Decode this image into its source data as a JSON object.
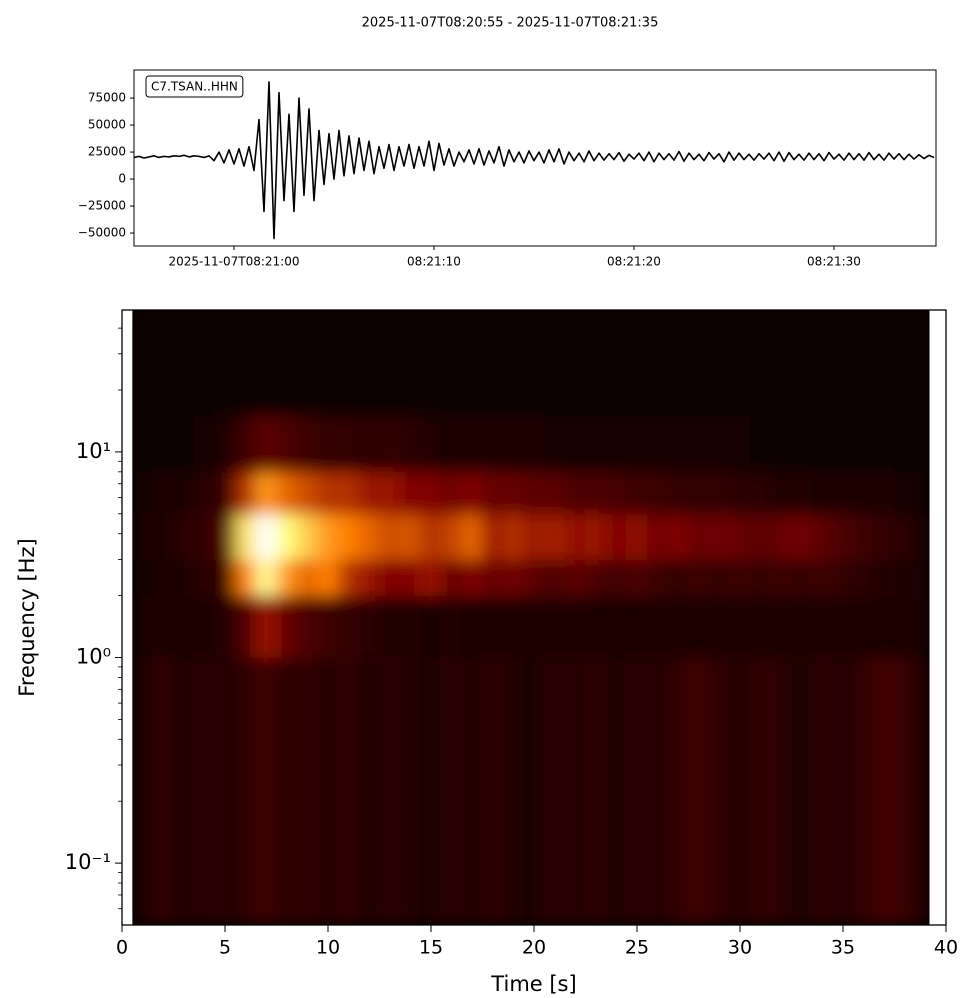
{
  "chart_data": [
    {
      "type": "line",
      "title": "2025-11-07T08:20:55  -  2025-11-07T08:21:35",
      "x": [
        0,
        0.25,
        0.5,
        0.75,
        1,
        1.25,
        1.5,
        1.75,
        2,
        2.25,
        2.5,
        2.75,
        3,
        3.25,
        3.5,
        3.75,
        4,
        4.25,
        4.5,
        4.75,
        5,
        5.25,
        5.5,
        5.75,
        6,
        6.25,
        6.5,
        6.75,
        7,
        7.25,
        7.5,
        7.75,
        8,
        8.25,
        8.5,
        8.75,
        9,
        9.25,
        9.5,
        9.75,
        10,
        10.25,
        10.5,
        10.75,
        11,
        11.25,
        11.5,
        11.75,
        12,
        12.25,
        12.5,
        12.75,
        13,
        13.25,
        13.5,
        13.75,
        14,
        14.25,
        14.5,
        14.75,
        15,
        15.25,
        15.5,
        15.75,
        16,
        16.25,
        16.5,
        16.75,
        17,
        17.25,
        17.5,
        17.75,
        18,
        18.25,
        18.5,
        18.75,
        19,
        19.25,
        19.5,
        19.75,
        20,
        20.25,
        20.5,
        20.75,
        21,
        21.25,
        21.5,
        21.75,
        22,
        22.25,
        22.5,
        22.75,
        23,
        23.25,
        23.5,
        23.75,
        24,
        24.25,
        24.5,
        24.75,
        25,
        25.25,
        25.5,
        25.75,
        26,
        26.25,
        26.5,
        26.75,
        27,
        27.25,
        27.5,
        27.75,
        28,
        28.25,
        28.5,
        28.75,
        29,
        29.25,
        29.5,
        29.75,
        30,
        30.25,
        30.5,
        30.75,
        31,
        31.25,
        31.5,
        31.75,
        32,
        32.25,
        32.5,
        32.75,
        33,
        33.25,
        33.5,
        33.75,
        34,
        34.25,
        34.5,
        34.75,
        35,
        35.25,
        35.5,
        35.75,
        36,
        36.25,
        36.5,
        36.75,
        37,
        37.25,
        37.5,
        37.75,
        38,
        38.25,
        38.5,
        38.75,
        39,
        39.25,
        39.5,
        39.75,
        40
      ],
      "series": [
        {
          "name": "C7.TSAN..HHN",
          "color": "#000000",
          "values": [
            20000,
            21000,
            19500,
            20500,
            21500,
            20000,
            21000,
            20500,
            21500,
            21000,
            22000,
            20500,
            21500,
            21000,
            20000,
            21500,
            17000,
            25000,
            15000,
            27000,
            14000,
            28000,
            12000,
            30000,
            8000,
            55000,
            -30000,
            90000,
            -55000,
            80000,
            -20000,
            60000,
            -30000,
            75000,
            -15000,
            65000,
            -20000,
            45000,
            -5000,
            42000,
            0,
            45000,
            3000,
            40000,
            5000,
            38000,
            8000,
            35000,
            5000,
            30000,
            10000,
            32000,
            8000,
            30000,
            12000,
            32000,
            10000,
            30000,
            12000,
            35000,
            8000,
            33000,
            13000,
            28000,
            12000,
            25000,
            16000,
            27000,
            14000,
            28000,
            13000,
            26000,
            15000,
            30000,
            12000,
            27000,
            16000,
            25000,
            15000,
            26000,
            17000,
            25000,
            15000,
            27000,
            16000,
            28000,
            14000,
            25000,
            17000,
            24000,
            16000,
            26000,
            17000,
            24000,
            17500,
            23500,
            18000,
            24500,
            16500,
            23000,
            18500,
            24000,
            17000,
            25000,
            16000,
            24000,
            18000,
            23500,
            17500,
            25500,
            16500,
            24000,
            18000,
            23000,
            17000,
            24500,
            18500,
            23500,
            16000,
            25000,
            17500,
            24000,
            18000,
            23000,
            17500,
            23500,
            18500,
            24000,
            17000,
            25000,
            16500,
            24500,
            18000,
            23000,
            17500,
            24000,
            18000,
            23500,
            17000,
            24500,
            18500,
            23000,
            17500,
            24000,
            18000,
            23500,
            17500,
            24500,
            18000,
            23000,
            17500,
            24000,
            18500,
            23500,
            18000,
            23000,
            18500,
            22500,
            19000,
            22000,
            20000
          ]
        }
      ],
      "xlim": [
        0,
        40.1
      ],
      "xticks": [
        {
          "value": 5,
          "label": "2025-11-07T08:21:00"
        },
        {
          "value": 15,
          "label": "08:21:10"
        },
        {
          "value": 25,
          "label": "08:21:20"
        },
        {
          "value": 35,
          "label": "08:21:30"
        }
      ],
      "ylim": [
        -62000,
        101000
      ],
      "yticks": [
        {
          "value": -50000,
          "label": "−50000"
        },
        {
          "value": -25000,
          "label": "−25000"
        },
        0,
        25000,
        50000,
        75000
      ]
    },
    {
      "type": "heatmap",
      "xlabel": "Time [s]",
      "ylabel": "Frequency [Hz]",
      "colormap": "afmhot",
      "yscale": "log",
      "x_edges": [
        0.5,
        1.5,
        2.5,
        3.5,
        4.5,
        5.5,
        6.5,
        7.5,
        8.5,
        9.5,
        10.5,
        11.5,
        12.5,
        13.5,
        14.5,
        15.5,
        16.5,
        17.5,
        18.5,
        19.5,
        20.5,
        21.5,
        22.5,
        23.5,
        24.5,
        25.5,
        26.5,
        27.5,
        28.5,
        29.5,
        30.5,
        31.5,
        32.5,
        33.5,
        34.5,
        35.5,
        36.5,
        37.5,
        38.5,
        39.2
      ],
      "y_edges": [
        0.05,
        0.1,
        0.2,
        0.5,
        1,
        2,
        3,
        5,
        8,
        15,
        49
      ],
      "z": [
        [
          0.06,
          0.1,
          0.05,
          0.08,
          0.07,
          0.09,
          0.12,
          0.08,
          0.1,
          0.07,
          0.1,
          0.06,
          0.08,
          0.07,
          0.05,
          0.08,
          0.06,
          0.09,
          0.07,
          0.06,
          0.08,
          0.07,
          0.09,
          0.06,
          0.08,
          0.07,
          0.1,
          0.12,
          0.09,
          0.07,
          0.1,
          0.08,
          0.06,
          0.09,
          0.07,
          0.1,
          0.13,
          0.11,
          0.07
        ],
        [
          0.06,
          0.1,
          0.05,
          0.08,
          0.07,
          0.09,
          0.12,
          0.08,
          0.1,
          0.07,
          0.1,
          0.06,
          0.08,
          0.07,
          0.05,
          0.08,
          0.06,
          0.09,
          0.07,
          0.06,
          0.08,
          0.07,
          0.09,
          0.06,
          0.08,
          0.07,
          0.1,
          0.12,
          0.09,
          0.07,
          0.1,
          0.08,
          0.06,
          0.09,
          0.07,
          0.1,
          0.13,
          0.11,
          0.07
        ],
        [
          0.06,
          0.1,
          0.05,
          0.08,
          0.07,
          0.09,
          0.12,
          0.08,
          0.1,
          0.07,
          0.1,
          0.06,
          0.08,
          0.07,
          0.05,
          0.08,
          0.06,
          0.09,
          0.07,
          0.06,
          0.08,
          0.07,
          0.09,
          0.06,
          0.08,
          0.07,
          0.1,
          0.12,
          0.09,
          0.07,
          0.1,
          0.08,
          0.06,
          0.09,
          0.07,
          0.1,
          0.13,
          0.11,
          0.07
        ],
        [
          0.06,
          0.1,
          0.05,
          0.08,
          0.07,
          0.09,
          0.12,
          0.08,
          0.1,
          0.07,
          0.1,
          0.06,
          0.08,
          0.07,
          0.05,
          0.08,
          0.06,
          0.09,
          0.07,
          0.06,
          0.08,
          0.07,
          0.09,
          0.06,
          0.08,
          0.07,
          0.1,
          0.12,
          0.09,
          0.07,
          0.1,
          0.08,
          0.06,
          0.09,
          0.07,
          0.1,
          0.13,
          0.11,
          0.07
        ],
        [
          0.05,
          0.06,
          0.05,
          0.06,
          0.07,
          0.15,
          0.3,
          0.2,
          0.15,
          0.12,
          0.1,
          0.08,
          0.07,
          0.07,
          0.06,
          0.07,
          0.06,
          0.06,
          0.05,
          0.06,
          0.05,
          0.06,
          0.05,
          0.05,
          0.06,
          0.05,
          0.06,
          0.05,
          0.05,
          0.06,
          0.05,
          0.05,
          0.06,
          0.05,
          0.05,
          0.06,
          0.05,
          0.05,
          0.05
        ],
        [
          0.04,
          0.05,
          0.06,
          0.08,
          0.1,
          0.5,
          0.8,
          0.55,
          0.45,
          0.5,
          0.35,
          0.3,
          0.25,
          0.25,
          0.3,
          0.2,
          0.25,
          0.2,
          0.22,
          0.18,
          0.15,
          0.18,
          0.15,
          0.12,
          0.15,
          0.12,
          0.1,
          0.12,
          0.1,
          0.12,
          0.1,
          0.12,
          0.1,
          0.12,
          0.1,
          0.08,
          0.07,
          0.06,
          0.05
        ],
        [
          0.05,
          0.06,
          0.08,
          0.1,
          0.15,
          0.7,
          1.0,
          0.75,
          0.65,
          0.55,
          0.5,
          0.45,
          0.4,
          0.42,
          0.35,
          0.38,
          0.45,
          0.3,
          0.35,
          0.3,
          0.32,
          0.28,
          0.3,
          0.25,
          0.28,
          0.22,
          0.25,
          0.2,
          0.22,
          0.2,
          0.18,
          0.2,
          0.22,
          0.18,
          0.15,
          0.12,
          0.1,
          0.08,
          0.06
        ],
        [
          0.04,
          0.05,
          0.06,
          0.08,
          0.1,
          0.35,
          0.55,
          0.45,
          0.4,
          0.35,
          0.35,
          0.3,
          0.3,
          0.25,
          0.25,
          0.22,
          0.25,
          0.2,
          0.2,
          0.18,
          0.18,
          0.15,
          0.15,
          0.14,
          0.12,
          0.12,
          0.1,
          0.1,
          0.1,
          0.08,
          0.08,
          0.07,
          0.07,
          0.06,
          0.06,
          0.05,
          0.05,
          0.04,
          0.04
        ],
        [
          0.02,
          0.03,
          0.03,
          0.04,
          0.05,
          0.12,
          0.18,
          0.15,
          0.12,
          0.1,
          0.1,
          0.08,
          0.1,
          0.08,
          0.07,
          0.06,
          0.06,
          0.05,
          0.05,
          0.05,
          0.04,
          0.04,
          0.04,
          0.04,
          0.04,
          0.04,
          0.04,
          0.04,
          0.04,
          0.04,
          0.03,
          0.03,
          0.03,
          0.03,
          0.03,
          0.03,
          0.03,
          0.03,
          0.03
        ],
        [
          0.02,
          0.02,
          0.02,
          0.02,
          0.02,
          0.02,
          0.02,
          0.02,
          0.02,
          0.02,
          0.02,
          0.02,
          0.02,
          0.02,
          0.02,
          0.02,
          0.02,
          0.02,
          0.02,
          0.02,
          0.02,
          0.02,
          0.02,
          0.02,
          0.02,
          0.02,
          0.02,
          0.02,
          0.02,
          0.02,
          0.02,
          0.02,
          0.02,
          0.02,
          0.02,
          0.02,
          0.02,
          0.02,
          0.02
        ]
      ],
      "xlim": [
        0,
        40
      ],
      "xticks": [
        0,
        5,
        10,
        15,
        20,
        25,
        30,
        35,
        40
      ],
      "ylim": [
        0.05,
        49
      ],
      "yticks": [
        {
          "value": 0.1,
          "label": "10⁻¹"
        },
        {
          "value": 1,
          "label": "10⁰"
        },
        {
          "value": 10,
          "label": "10¹"
        }
      ],
      "yminorticks": [
        0.06,
        0.07,
        0.08,
        0.09,
        0.2,
        0.3,
        0.4,
        0.5,
        0.6,
        0.7,
        0.8,
        0.9,
        2,
        3,
        4,
        5,
        6,
        7,
        8,
        9,
        20,
        30,
        40
      ]
    }
  ]
}
